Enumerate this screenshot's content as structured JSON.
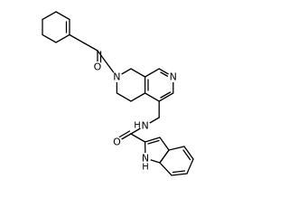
{
  "labels": [
    "O",
    "N",
    "N",
    "N",
    "H",
    "O",
    "N",
    "H"
  ]
}
